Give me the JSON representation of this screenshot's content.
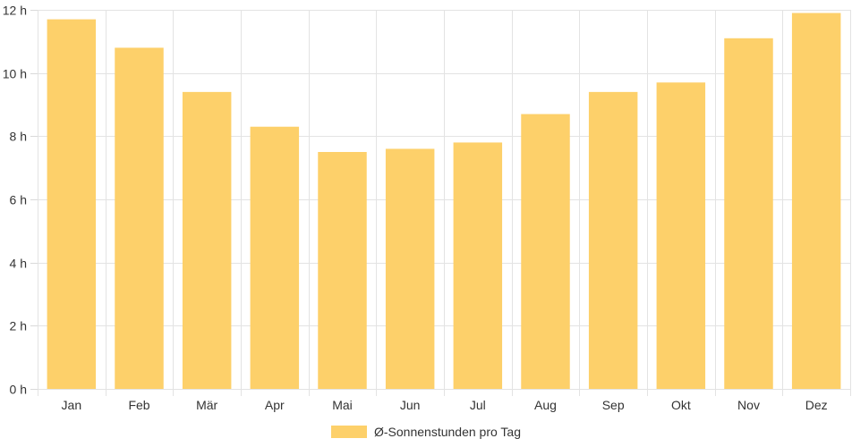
{
  "chart_data": {
    "type": "bar",
    "categories": [
      "Jan",
      "Feb",
      "Mär",
      "Apr",
      "Mai",
      "Jun",
      "Jul",
      "Aug",
      "Sep",
      "Okt",
      "Nov",
      "Dez"
    ],
    "series": [
      {
        "name": "Ø-Sonnenstunden pro Tag",
        "values": [
          11.7,
          10.8,
          9.4,
          8.3,
          7.5,
          7.6,
          7.8,
          8.7,
          9.4,
          9.7,
          11.1,
          11.9
        ],
        "color": "#fdd06a"
      }
    ],
    "yticks": [
      "0 h",
      "2 h",
      "4 h",
      "6 h",
      "8 h",
      "10 h",
      "12 h"
    ],
    "ylim": [
      0,
      12
    ],
    "grid": true,
    "legend_position": "bottom"
  }
}
